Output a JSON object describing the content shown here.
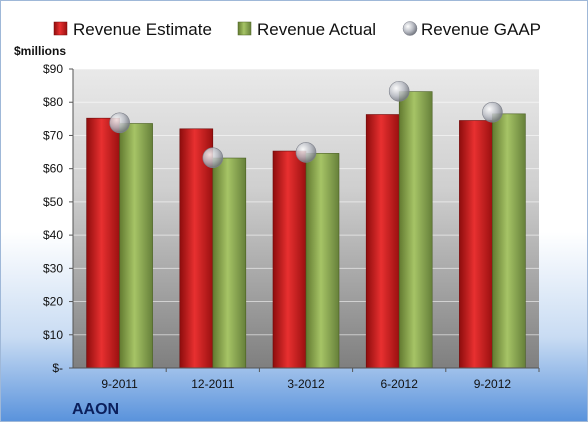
{
  "chart_data": {
    "type": "bar",
    "categories": [
      "9-2011",
      "12-2011",
      "3-2012",
      "6-2012",
      "9-2012"
    ],
    "series": [
      {
        "name": "Revenue Estimate",
        "kind": "bar",
        "color": "#cc1a1a",
        "values": [
          75.2,
          72.0,
          65.3,
          76.3,
          74.5
        ]
      },
      {
        "name": "Revenue Actual",
        "kind": "bar",
        "color": "#8fae4e",
        "values": [
          73.6,
          63.2,
          64.6,
          83.2,
          76.5
        ]
      },
      {
        "name": "Revenue GAAP",
        "kind": "marker",
        "color": "#b9bcc4",
        "values": [
          73.8,
          63.3,
          64.9,
          83.3,
          77.0
        ]
      }
    ],
    "ylabel": "$millions",
    "ylim": [
      0,
      90
    ],
    "yticks": [
      0,
      10,
      20,
      30,
      40,
      50,
      60,
      70,
      80,
      90
    ],
    "ytick_labels": [
      "$-",
      "$10",
      "$20",
      "$30",
      "$40",
      "$50",
      "$60",
      "$70",
      "$80",
      "$90"
    ],
    "grid": true,
    "legend_position": "top",
    "company": "AAON"
  }
}
